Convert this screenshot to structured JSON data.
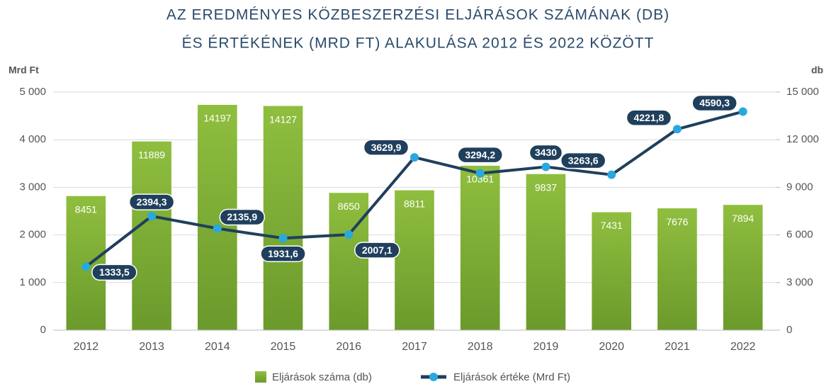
{
  "chart_data": {
    "type": "bar_line",
    "title": [
      "AZ EREDMÉNYES KÖZBESZERZÉSI ELJÁRÁSOK SZÁMÁNAK (DB)",
      "ÉS ÉRTÉKÉNEK (MRD FT) ALAKULÁSA 2012 ÉS 2022 KÖZÖTT"
    ],
    "y_label": "Mrd Ft",
    "y2_label": "db",
    "categories": [
      "2012",
      "2013",
      "2014",
      "2015",
      "2016",
      "2017",
      "2018",
      "2019",
      "2020",
      "2021",
      "2022"
    ],
    "series": [
      {
        "name": "Eljárások száma (db)",
        "type": "bar",
        "axis": "y2",
        "color": "#7eae35",
        "values": [
          8451,
          11889,
          14197,
          14127,
          8650,
          8811,
          10361,
          9837,
          7431,
          7676,
          7894
        ]
      },
      {
        "name": "Eljárások értéke (Mrd Ft)",
        "type": "line",
        "axis": "y",
        "color": "#1f3f5c",
        "marker_color": "#29a8e0",
        "values": [
          1333.5,
          2394.3,
          2135.9,
          1931.6,
          2007.1,
          3629.9,
          3294.2,
          3430,
          3263.6,
          4221.8,
          4590.3
        ],
        "value_labels": [
          "1333,5",
          "2394,3",
          "2135,9",
          "1931,6",
          "2007,1",
          "3629,9",
          "3294,2",
          "3430",
          "3263,6",
          "4221,8",
          "4590,3"
        ]
      }
    ],
    "ylim": [
      0,
      5000
    ],
    "yticks": [
      0,
      {
        "value": 1000,
        "label": "1 000"
      },
      {
        "value": 2000,
        "label": "2 000"
      },
      {
        "value": 3000,
        "label": "3 000"
      },
      {
        "value": 4000,
        "label": "4 000"
      },
      {
        "value": 5000,
        "label": "5 000"
      }
    ],
    "y2lim": [
      0,
      15000
    ],
    "y2ticks": [
      0,
      {
        "value": 3000,
        "label": "3 000"
      },
      {
        "value": 6000,
        "label": "6 000"
      },
      {
        "value": 9000,
        "label": "9 000"
      },
      {
        "value": 12000,
        "label": "12 000"
      },
      {
        "value": 15000,
        "label": "15 000"
      }
    ],
    "grid": true,
    "legend": "bottom"
  }
}
